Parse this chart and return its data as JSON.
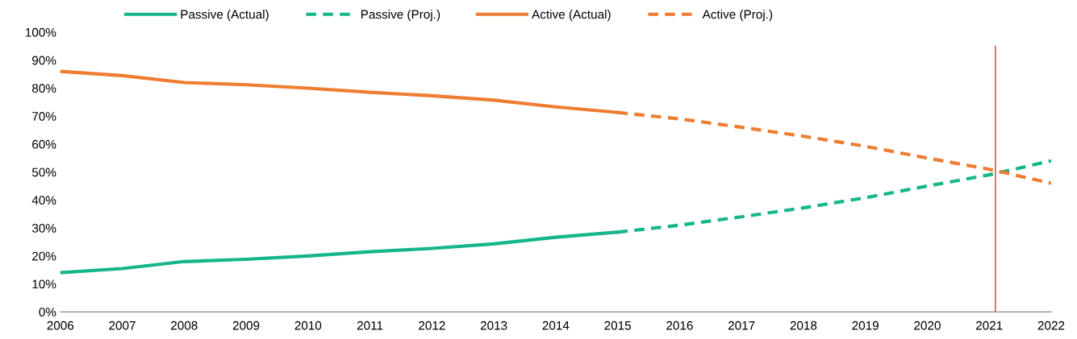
{
  "chart_data": {
    "type": "line",
    "xlim": [
      2006,
      2022
    ],
    "xticks": [
      2006,
      2007,
      2008,
      2009,
      2010,
      2011,
      2012,
      2013,
      2014,
      2015,
      2016,
      2017,
      2018,
      2019,
      2020,
      2021,
      2022
    ],
    "ylim": [
      0,
      100
    ],
    "yticks": [
      {
        "value": 0,
        "label": "0%"
      },
      {
        "value": 10,
        "label": "10%"
      },
      {
        "value": 20,
        "label": "20%"
      },
      {
        "value": 30,
        "label": "30%"
      },
      {
        "value": 40,
        "label": "40%"
      },
      {
        "value": 50,
        "label": "50%"
      },
      {
        "value": 60,
        "label": "60%"
      },
      {
        "value": 70,
        "label": "70%"
      },
      {
        "value": 80,
        "label": "80%"
      },
      {
        "value": 90,
        "label": "90%"
      },
      {
        "value": 100,
        "label": "100%"
      }
    ],
    "grid": false,
    "legend": "top",
    "marker": "none",
    "series": [
      {
        "name": "Passive (Actual)",
        "color": "#14b68a",
        "line_style": "solid",
        "x": [
          2006,
          2007,
          2008,
          2009,
          2010,
          2011,
          2012,
          2013,
          2014,
          2015
        ],
        "values": [
          14,
          15.5,
          18,
          18.8,
          20,
          21.5,
          22.7,
          24.3,
          26.7,
          28.5
        ]
      },
      {
        "name": "Passive (Proj.)",
        "color": "#14b68a",
        "line_style": "dashed",
        "x": [
          2015,
          2016,
          2017,
          2018,
          2019,
          2020,
          2021,
          2022
        ],
        "values": [
          28.5,
          31,
          34,
          37.2,
          40.8,
          45,
          49,
          54
        ]
      },
      {
        "name": "Active (Actual)",
        "color": "#ee7d31",
        "line_style": "solid",
        "x": [
          2006,
          2007,
          2008,
          2009,
          2010,
          2011,
          2012,
          2013,
          2014,
          2015
        ],
        "values": [
          86,
          84.5,
          82,
          81.2,
          80,
          78.5,
          77.3,
          75.7,
          73.3,
          71.3
        ]
      },
      {
        "name": "Active (Proj.)",
        "color": "#ee7d31",
        "line_style": "dashed",
        "x": [
          2015,
          2016,
          2017,
          2018,
          2019,
          2020,
          2021,
          2022
        ],
        "values": [
          71.3,
          69,
          66,
          62.8,
          59.2,
          55,
          51,
          46
        ]
      }
    ],
    "ref_lines": [
      {
        "axis": "x",
        "value": 2021.1,
        "color": "#e8322e"
      }
    ]
  }
}
